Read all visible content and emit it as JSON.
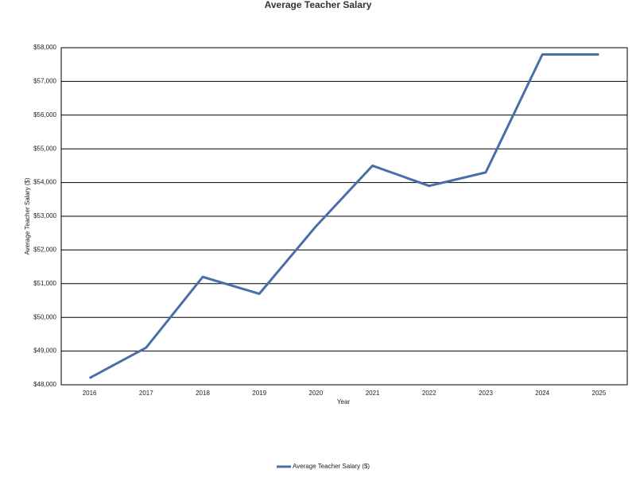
{
  "chart_data": {
    "type": "line",
    "title": "Average Teacher Salary",
    "x_label": "Year",
    "y_label": "Average Teacher Salary ($)",
    "categories": [
      "2016",
      "2017",
      "2018",
      "2019",
      "2020",
      "2021",
      "2022",
      "2023",
      "2024",
      "2025"
    ],
    "series": [
      {
        "name": "Average Teacher Salary ($)",
        "color": "#4a6ea9",
        "values": [
          48200,
          49100,
          51200,
          50700,
          52700,
          54500,
          53900,
          54300,
          57800,
          57800
        ]
      }
    ],
    "ylim": [
      48000,
      58000
    ],
    "yticks": [
      {
        "value": 48000,
        "label": "$48,000"
      },
      {
        "value": 49000,
        "label": "$49,000"
      },
      {
        "value": 50000,
        "label": "$50,000"
      },
      {
        "value": 51000,
        "label": "$51,000"
      },
      {
        "value": 52000,
        "label": "$52,000"
      },
      {
        "value": 53000,
        "label": "$53,000"
      },
      {
        "value": 54000,
        "label": "$54,000"
      },
      {
        "value": 55000,
        "label": "$55,000"
      },
      {
        "value": 56000,
        "label": "$56,000"
      },
      {
        "value": 57000,
        "label": "$57,000"
      },
      {
        "value": 58000,
        "label": "$58,000"
      }
    ],
    "grid": true,
    "legend": "bottom"
  }
}
